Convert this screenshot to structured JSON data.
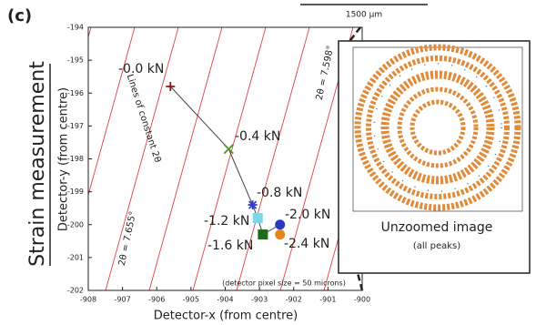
{
  "chart_data": {
    "type": "scatter",
    "panel_label": "(c)",
    "scale_bar": "1500 µm",
    "side_title": "Strain measurement",
    "x_label": "Detector-x (from centre)",
    "y_label": "Detector-y (from centre)",
    "xlim": [
      -908,
      -900
    ],
    "ylim": [
      -202,
      -194
    ],
    "xticks": [
      -908,
      -907,
      -906,
      -905,
      -904,
      -903,
      -902,
      -901,
      -900
    ],
    "yticks": [
      -202,
      -201,
      -200,
      -199,
      -198,
      -197,
      -196,
      -195,
      -194
    ],
    "x": [
      -905.6,
      -903.9,
      -903.2,
      -903.05,
      -902.9,
      -902.4,
      -902.4
    ],
    "values": [
      -195.8,
      -197.7,
      -199.4,
      -199.8,
      -200.3,
      -200.0,
      -200.3
    ],
    "point_labels": [
      "-0.0 kN",
      "-0.4 kN",
      "-0.8 kN",
      "-1.2 kN",
      "-1.6 kN",
      "-2.0 kN",
      "-2.4 kN"
    ],
    "markers": [
      "plus",
      "cross",
      "star",
      "square",
      "square",
      "circle",
      "circle"
    ],
    "colors": [
      "#8b1a1a",
      "#4a9a2a",
      "#3a3ad0",
      "#7fd6e8",
      "#1e6b1e",
      "#2a3ac0",
      "#e8841e"
    ],
    "line_color": "#444444",
    "constant_line_color": "#e04040",
    "annotations": [
      "Lines of constant 2θ",
      "2θ = 7.598°",
      "2θ = 7.655°",
      "(detector pixel size = 50 microns)"
    ],
    "inset": {
      "title": "Unzoomed image",
      "subtitle": "(all peaks)"
    }
  }
}
